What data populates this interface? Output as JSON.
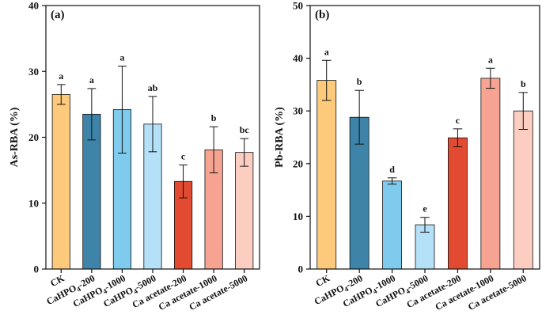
{
  "chart_data": [
    {
      "type": "bar",
      "panel_label": "(a)",
      "ylabel": "As-RBA (%)",
      "ylim": [
        0,
        40
      ],
      "yticks": [
        0,
        10,
        20,
        30,
        40
      ],
      "categories": [
        "CK",
        "CaHPO4-200",
        "CaHPO4-1000",
        "CaHPO4-5000",
        "Ca acetate-200",
        "Ca acetate-1000",
        "Ca acetate-5000"
      ],
      "category_labels": [
        {
          "base": "CK",
          "sub": "",
          "tail": ""
        },
        {
          "base": "CaHPO",
          "sub": "4",
          "tail": "-200"
        },
        {
          "base": "CaHPO",
          "sub": "4",
          "tail": "-1000"
        },
        {
          "base": "CaHPO",
          "sub": "4",
          "tail": "-5000"
        },
        {
          "base": "Ca acetate-200",
          "sub": "",
          "tail": ""
        },
        {
          "base": "Ca acetate-1000",
          "sub": "",
          "tail": ""
        },
        {
          "base": "Ca acetate-5000",
          "sub": "",
          "tail": ""
        }
      ],
      "values": [
        26.5,
        23.5,
        24.2,
        22.0,
        13.3,
        18.1,
        17.7
      ],
      "errors": [
        1.5,
        3.9,
        6.6,
        4.2,
        2.5,
        3.5,
        2.1
      ],
      "letters": [
        "a",
        "a",
        "a",
        "ab",
        "c",
        "b",
        "bc"
      ],
      "colors": [
        "#FDC97A",
        "#3D84A8",
        "#7FCBEE",
        "#B4E1F7",
        "#E24B32",
        "#F7A391",
        "#FCCDC1"
      ]
    },
    {
      "type": "bar",
      "panel_label": "(b)",
      "ylabel": "Pb-RBA (%)",
      "ylim": [
        0,
        50
      ],
      "yticks": [
        0,
        10,
        20,
        30,
        40,
        50
      ],
      "categories": [
        "CK",
        "CaHPO4-200",
        "CaHPO4-1000",
        "CaHPO4-5000",
        "Ca acetate-200",
        "Ca acetate-1000",
        "Ca acetate-5000"
      ],
      "category_labels": [
        {
          "base": "CK",
          "sub": "",
          "tail": ""
        },
        {
          "base": "CaHPO",
          "sub": "4",
          "tail": "-200"
        },
        {
          "base": "CaHPO",
          "sub": "4",
          "tail": "-1000"
        },
        {
          "base": "CaHPO",
          "sub": "4",
          "tail": "-5000"
        },
        {
          "base": "Ca acetate-200",
          "sub": "",
          "tail": ""
        },
        {
          "base": "Ca acetate-1000",
          "sub": "",
          "tail": ""
        },
        {
          "base": "Ca acetate-5000",
          "sub": "",
          "tail": ""
        }
      ],
      "values": [
        35.8,
        28.8,
        16.7,
        8.4,
        24.9,
        36.2,
        30.0
      ],
      "errors": [
        3.8,
        5.1,
        0.6,
        1.4,
        1.7,
        1.9,
        3.5
      ],
      "letters": [
        "a",
        "b",
        "d",
        "e",
        "c",
        "a",
        "b"
      ],
      "colors": [
        "#FDC97A",
        "#3D84A8",
        "#7FCBEE",
        "#B4E1F7",
        "#E24B32",
        "#F7A391",
        "#FCCDC1"
      ]
    }
  ]
}
